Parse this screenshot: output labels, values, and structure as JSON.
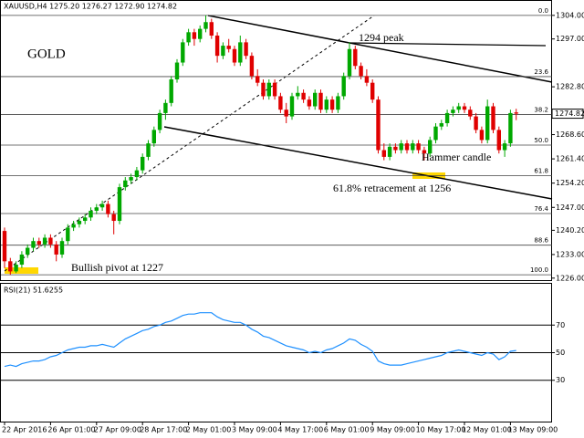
{
  "chart_data": [
    {
      "type": "candlestick",
      "title": "XAUUSD,H4  1275.20 1276.27 1272.90 1274.82",
      "annotations": [
        "GOLD",
        "1294 peak",
        "Hammer candle",
        "61.8% retracement at 1256",
        "Bullish pivot at 1227"
      ],
      "up_color": "#00a800",
      "down_color": "#e00000",
      "last_price": 1274.82,
      "ylim": [
        1225.4,
        1306.4
      ],
      "yticks": [
        {
          "value": 1304,
          "label": "1304.00"
        },
        {
          "value": 1297,
          "label": "1297.00"
        },
        {
          "value": 1282.8,
          "label": "1282.80"
        },
        {
          "value": 1268.6,
          "label": "1268.60"
        },
        {
          "value": 1261.4,
          "label": "1261.40"
        },
        {
          "value": 1254.2,
          "label": "1254.20"
        },
        {
          "value": 1247,
          "label": "1247.00"
        },
        {
          "value": 1240.2,
          "label": "1240.20"
        },
        {
          "value": 1233,
          "label": "1233.00"
        },
        {
          "value": 1226,
          "label": "1226.00"
        }
      ],
      "fib": {
        "high": 1304,
        "low": 1227,
        "levels": [
          {
            "value": 0,
            "label": "0.0"
          },
          23.6,
          38.2,
          {
            "value": 50,
            "label": "50.0"
          },
          61.8,
          76.4,
          88.6,
          {
            "value": 100,
            "label": "100.0"
          }
        ]
      },
      "categories": [
        "22 Apr 2016",
        null,
        null,
        null,
        null,
        null,
        null,
        null,
        "26 Apr 01:00",
        null,
        null,
        null,
        null,
        null,
        null,
        null,
        "27 Apr 09:00",
        null,
        null,
        null,
        null,
        null,
        null,
        null,
        "28 Apr 17:00",
        null,
        null,
        null,
        null,
        null,
        null,
        null,
        "2 May 01:00",
        null,
        null,
        null,
        null,
        null,
        null,
        null,
        "3 May 09:00",
        null,
        null,
        null,
        null,
        null,
        null,
        null,
        "4 May 17:00",
        null,
        null,
        null,
        null,
        null,
        null,
        null,
        "6 May 01:00",
        null,
        null,
        null,
        null,
        null,
        null,
        null,
        "9 May 09:00",
        null,
        null,
        null,
        null,
        null,
        null,
        null,
        "10 May 17:00",
        null,
        null,
        null,
        null,
        null,
        null,
        null,
        "12 May 01:00",
        null,
        null,
        null,
        null,
        null,
        null,
        null,
        "13 May 09:00",
        null
      ],
      "ohlc": [
        [
          1240,
          1241,
          1229,
          1231
        ],
        [
          1231,
          1232,
          1227,
          1228
        ],
        [
          1228,
          1231,
          1227.5,
          1230
        ],
        [
          1230,
          1234,
          1229,
          1233
        ],
        [
          1233,
          1236,
          1232,
          1235
        ],
        [
          1235,
          1238,
          1234,
          1237
        ],
        [
          1237,
          1238,
          1235,
          1236
        ],
        [
          1236,
          1239,
          1235,
          1238
        ],
        [
          1238,
          1239,
          1235,
          1236
        ],
        [
          1236,
          1237,
          1231,
          1233
        ],
        [
          1233,
          1238,
          1232,
          1237
        ],
        [
          1237,
          1242,
          1236,
          1241
        ],
        [
          1241,
          1243,
          1240,
          1242
        ],
        [
          1242,
          1244,
          1241,
          1243
        ],
        [
          1243,
          1245,
          1242,
          1244
        ],
        [
          1244,
          1247,
          1243,
          1246
        ],
        [
          1246,
          1248,
          1245,
          1247
        ],
        [
          1247,
          1249,
          1246,
          1248
        ],
        [
          1248,
          1249,
          1244,
          1245
        ],
        [
          1245,
          1246,
          1239,
          1243
        ],
        [
          1243,
          1254,
          1242,
          1253
        ],
        [
          1253,
          1256,
          1252,
          1255
        ],
        [
          1255,
          1257,
          1254,
          1256
        ],
        [
          1256,
          1259,
          1255,
          1258
        ],
        [
          1258,
          1263,
          1257,
          1262
        ],
        [
          1262,
          1267,
          1261,
          1266
        ],
        [
          1266,
          1271,
          1265,
          1270
        ],
        [
          1270,
          1276,
          1269,
          1275
        ],
        [
          1275,
          1279,
          1273,
          1278
        ],
        [
          1278,
          1286,
          1277,
          1285
        ],
        [
          1285,
          1291,
          1284,
          1290
        ],
        [
          1290,
          1297,
          1289,
          1296
        ],
        [
          1296,
          1300,
          1295,
          1299
        ],
        [
          1299,
          1300,
          1295,
          1297
        ],
        [
          1297,
          1301,
          1296,
          1300
        ],
        [
          1300,
          1304,
          1299,
          1302
        ],
        [
          1302,
          1303,
          1297,
          1298
        ],
        [
          1298,
          1299,
          1290,
          1292
        ],
        [
          1292,
          1296,
          1291,
          1295
        ],
        [
          1295,
          1297,
          1293,
          1294
        ],
        [
          1294,
          1295,
          1289,
          1290
        ],
        [
          1290,
          1298,
          1289,
          1296
        ],
        [
          1296,
          1297,
          1291,
          1292
        ],
        [
          1292,
          1293,
          1285,
          1286
        ],
        [
          1286,
          1288,
          1283,
          1284
        ],
        [
          1284,
          1285,
          1279,
          1280
        ],
        [
          1280,
          1285,
          1279,
          1284
        ],
        [
          1284,
          1285,
          1279,
          1280
        ],
        [
          1280,
          1281,
          1275,
          1276
        ],
        [
          1276,
          1278,
          1272,
          1274
        ],
        [
          1274,
          1281,
          1273,
          1280
        ],
        [
          1280,
          1283,
          1279,
          1281
        ],
        [
          1281,
          1282,
          1278,
          1279
        ],
        [
          1279,
          1280,
          1276,
          1277
        ],
        [
          1277,
          1282,
          1276,
          1281
        ],
        [
          1281,
          1282,
          1275,
          1276
        ],
        [
          1276,
          1280,
          1275,
          1279
        ],
        [
          1279,
          1280,
          1275,
          1276
        ],
        [
          1276,
          1281,
          1275,
          1280
        ],
        [
          1280,
          1287,
          1279,
          1286
        ],
        [
          1286,
          1296,
          1285,
          1294
        ],
        [
          1294,
          1295,
          1288,
          1289
        ],
        [
          1289,
          1290,
          1285,
          1286
        ],
        [
          1286,
          1288,
          1283,
          1284
        ],
        [
          1284,
          1285,
          1278,
          1279
        ],
        [
          1279,
          1280,
          1263,
          1264
        ],
        [
          1264,
          1266,
          1261,
          1262
        ],
        [
          1262,
          1266,
          1261,
          1265
        ],
        [
          1265,
          1266,
          1263,
          1264
        ],
        [
          1264,
          1267,
          1263,
          1266
        ],
        [
          1266,
          1267,
          1263,
          1264
        ],
        [
          1264,
          1267,
          1263,
          1266
        ],
        [
          1266,
          1267,
          1263,
          1264
        ],
        [
          1264,
          1265,
          1261,
          1263
        ],
        [
          1263,
          1268,
          1262,
          1267
        ],
        [
          1267,
          1272,
          1266,
          1271
        ],
        [
          1271,
          1273,
          1270,
          1272
        ],
        [
          1272,
          1276,
          1271,
          1275
        ],
        [
          1275,
          1277,
          1274,
          1276
        ],
        [
          1276,
          1278,
          1275,
          1277
        ],
        [
          1277,
          1278,
          1275,
          1276
        ],
        [
          1276,
          1277,
          1273,
          1274
        ],
        [
          1274,
          1275,
          1269,
          1270
        ],
        [
          1270,
          1271,
          1266,
          1267
        ],
        [
          1267,
          1279,
          1266,
          1277
        ],
        [
          1277,
          1278,
          1269,
          1270
        ],
        [
          1270,
          1271,
          1263,
          1264
        ],
        [
          1264,
          1267,
          1262,
          1266
        ],
        [
          1266,
          1276,
          1265,
          1275
        ],
        [
          1275.2,
          1276.27,
          1272.9,
          1274.82
        ]
      ]
    },
    {
      "type": "line",
      "title": "RSI(21) 51.6255",
      "color": "#1e90ff",
      "ylim": [
        0,
        100
      ],
      "yticks": [
        30,
        50,
        70
      ],
      "values": [
        40,
        41,
        40,
        42,
        43,
        44,
        44,
        45,
        47,
        48,
        50,
        52,
        53,
        54,
        54,
        55,
        55,
        56,
        55,
        54,
        57,
        60,
        62,
        64,
        66,
        67,
        69,
        70,
        72,
        73,
        75,
        77,
        78,
        78,
        79,
        79,
        79,
        76,
        74,
        73,
        72,
        72,
        70,
        67,
        65,
        62,
        61,
        59,
        57,
        55,
        54,
        53,
        52,
        50,
        51,
        50,
        52,
        53,
        55,
        57,
        60,
        59,
        56,
        54,
        51,
        44,
        42,
        41,
        41,
        41,
        42,
        43,
        44,
        45,
        46,
        47,
        48,
        50,
        51,
        52,
        51,
        50,
        49,
        48,
        50,
        49,
        45,
        47,
        51,
        51.6
      ]
    }
  ]
}
